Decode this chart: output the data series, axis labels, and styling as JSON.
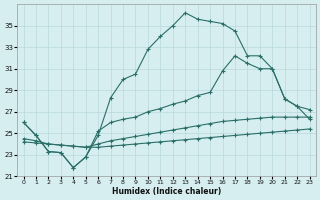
{
  "xlabel": "Humidex (Indice chaleur)",
  "bg_color": "#d6eef0",
  "grid_color": "#b8d8dc",
  "line_color": "#2a6e68",
  "xlim": [
    -0.5,
    23.5
  ],
  "ylim": [
    21,
    37
  ],
  "yticks": [
    21,
    23,
    25,
    27,
    29,
    31,
    33,
    35
  ],
  "xticks": [
    0,
    1,
    2,
    3,
    4,
    5,
    6,
    7,
    8,
    9,
    10,
    11,
    12,
    13,
    14,
    15,
    16,
    17,
    18,
    19,
    20,
    21,
    22,
    23
  ],
  "series1_x": [
    0,
    1,
    2,
    3,
    4,
    5,
    6,
    7,
    8,
    9,
    10,
    11,
    12,
    13,
    14,
    15,
    16,
    17,
    18,
    19,
    20,
    21,
    22,
    23
  ],
  "series1_y": [
    26.0,
    24.8,
    23.3,
    23.2,
    21.8,
    22.8,
    24.8,
    28.3,
    30.0,
    30.5,
    32.8,
    34.0,
    35.0,
    36.2,
    35.6,
    35.4,
    35.2,
    34.5,
    32.2,
    32.2,
    31.0,
    28.2,
    27.5,
    27.2
  ],
  "series2_x": [
    0,
    1,
    2,
    3,
    4,
    5,
    6,
    7,
    8,
    9,
    10,
    11,
    12,
    13,
    14,
    15,
    16,
    17,
    18,
    19,
    20,
    21,
    22,
    23
  ],
  "series2_y": [
    26.0,
    24.8,
    23.3,
    23.2,
    21.8,
    22.8,
    25.2,
    26.0,
    26.3,
    26.5,
    27.0,
    27.3,
    27.7,
    28.0,
    28.5,
    28.8,
    30.8,
    32.2,
    31.5,
    31.0,
    31.0,
    28.2,
    27.5,
    26.3
  ],
  "series3_x": [
    0,
    1,
    2,
    3,
    4,
    5,
    6,
    7,
    8,
    9,
    10,
    11,
    12,
    13,
    14,
    15,
    16,
    17,
    18,
    19,
    20,
    21,
    22,
    23
  ],
  "series3_y": [
    24.5,
    24.3,
    24.0,
    23.9,
    23.8,
    23.7,
    24.0,
    24.3,
    24.5,
    24.7,
    24.9,
    25.1,
    25.3,
    25.5,
    25.7,
    25.9,
    26.1,
    26.2,
    26.3,
    26.4,
    26.5,
    26.5,
    26.5,
    26.5
  ],
  "series4_x": [
    0,
    1,
    2,
    3,
    4,
    5,
    6,
    7,
    8,
    9,
    10,
    11,
    12,
    13,
    14,
    15,
    16,
    17,
    18,
    19,
    20,
    21,
    22,
    23
  ],
  "series4_y": [
    24.2,
    24.1,
    24.0,
    23.9,
    23.8,
    23.7,
    23.7,
    23.8,
    23.9,
    24.0,
    24.1,
    24.2,
    24.3,
    24.4,
    24.5,
    24.6,
    24.7,
    24.8,
    24.9,
    25.0,
    25.1,
    25.2,
    25.3,
    25.4
  ]
}
